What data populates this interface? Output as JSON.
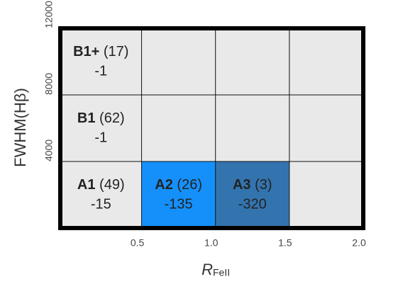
{
  "chart_data": {
    "type": "grid",
    "xlabel": "R",
    "xlabel_sub": "FeII",
    "ylabel": "FWHM(Hβ)",
    "xlim": [
      -0.05,
      2.0
    ],
    "xticks": [
      0.5,
      {
        "value": 1,
        "label": "1.0"
      },
      1.5,
      {
        "value": 2,
        "label": "2.0"
      }
    ],
    "ylim": [
      0,
      12000
    ],
    "yticks": [
      4000,
      8000,
      12000
    ],
    "background": "#e9e9e9",
    "cells": [
      {
        "name": "B1+",
        "count_label": "(17)",
        "value": -1,
        "xrange": [
          -0.05,
          0.5
        ],
        "yrange": [
          8000,
          12000
        ],
        "color": "#e9e9e9"
      },
      {
        "name": "B1",
        "count_label": "(62)",
        "value": -1,
        "xrange": [
          -0.05,
          0.5
        ],
        "yrange": [
          4000,
          8000
        ],
        "color": "#e9e9e9"
      },
      {
        "name": "A1",
        "count_label": "(49)",
        "value": -15,
        "xrange": [
          -0.05,
          0.5
        ],
        "yrange": [
          0,
          4000
        ],
        "color": "#e9e9e9"
      },
      {
        "name": "A2",
        "count_label": "(26)",
        "value": -135,
        "xrange": [
          0.5,
          1.0
        ],
        "yrange": [
          0,
          4000
        ],
        "color": "#1590fb"
      },
      {
        "name": "A3",
        "count_label": "(3)",
        "value": -320,
        "xrange": [
          1.0,
          1.5
        ],
        "yrange": [
          0,
          4000
        ],
        "color": "#3374ae"
      }
    ]
  }
}
